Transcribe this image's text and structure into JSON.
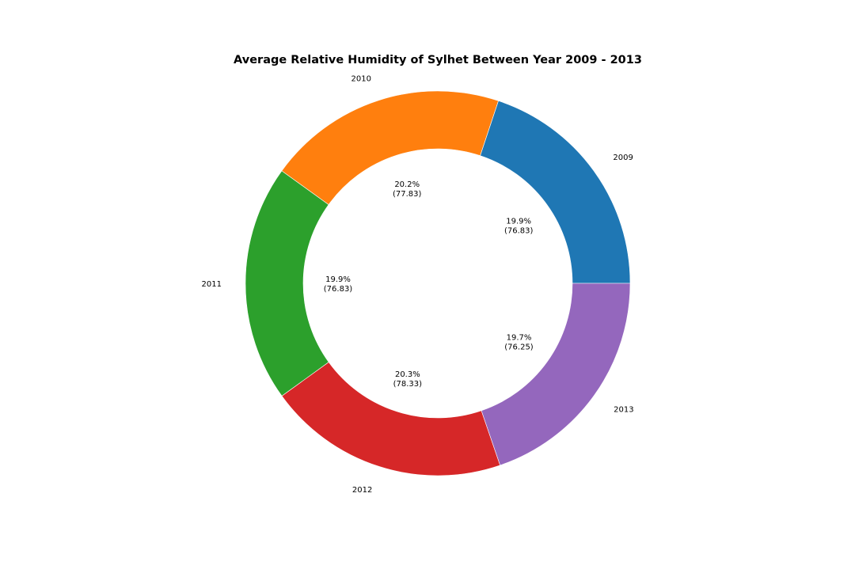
{
  "chart_data": {
    "type": "pie",
    "style": "donut",
    "title": "Average Relative Humidity of Sylhet Between Year 2009 - 2013",
    "categories": [
      "2009",
      "2010",
      "2011",
      "2012",
      "2013"
    ],
    "values": [
      76.83,
      77.83,
      76.83,
      78.33,
      76.25
    ],
    "percent_labels": [
      "19.9%",
      "20.2%",
      "19.9%",
      "20.3%",
      "19.7%"
    ],
    "value_labels": [
      "(76.83)",
      "(77.83)",
      "(76.83)",
      "(78.33)",
      "(76.25)"
    ],
    "colors": [
      "#1f77b4",
      "#ff7f0e",
      "#2ca02c",
      "#d62728",
      "#9467bd"
    ],
    "start_angle_deg": 0,
    "direction": "counterclockwise",
    "legend": "none"
  }
}
